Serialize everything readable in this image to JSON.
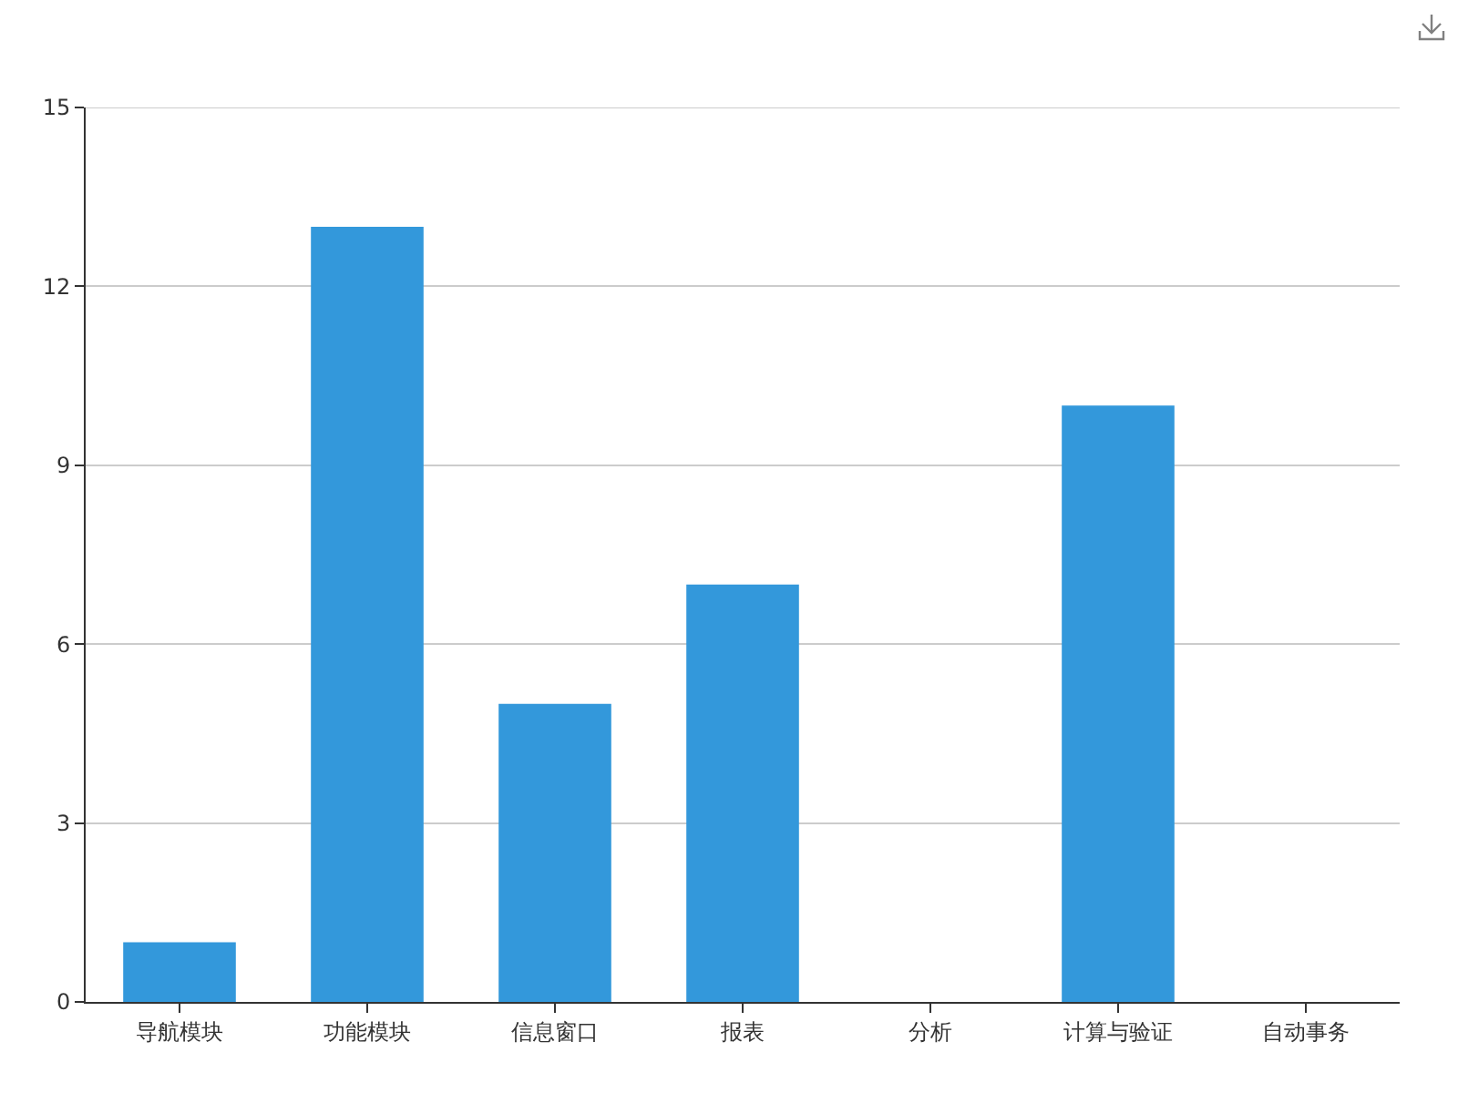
{
  "chart_data": {
    "type": "bar",
    "categories": [
      "导航模块",
      "功能模块",
      "信息窗口",
      "报表",
      "分析",
      "计算与验证",
      "自动事务"
    ],
    "values": [
      1,
      13,
      5,
      7,
      0,
      10,
      0
    ],
    "color": "#3398db",
    "ylim": [
      0,
      15
    ],
    "yticks": [
      0,
      3,
      6,
      9,
      12,
      15
    ],
    "grid": "y"
  }
}
